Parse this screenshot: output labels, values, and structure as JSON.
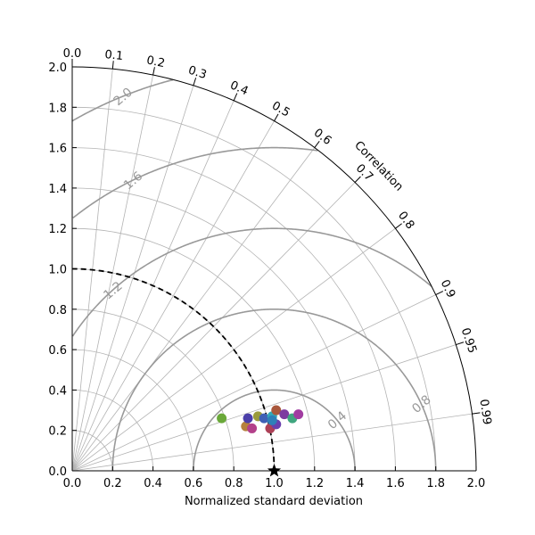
{
  "chart_data": {
    "type": "scatter",
    "chart_kind": "taylor-diagram",
    "xlabel": "Normalized standard deviation",
    "ylabel": "",
    "corr_label": "Correlation",
    "xlim": [
      0,
      2
    ],
    "ylim": [
      0,
      2
    ],
    "x_ticks": [
      "0.0",
      "0.2",
      "0.4",
      "0.6",
      "0.8",
      "1.0",
      "1.2",
      "1.4",
      "1.6",
      "1.8",
      "2.0"
    ],
    "y_ticks": [
      "0.0",
      "0.2",
      "0.4",
      "0.6",
      "0.8",
      "1.0",
      "1.2",
      "1.4",
      "1.6",
      "1.8",
      "2.0"
    ],
    "corr_ticks": [
      "0.0",
      "0.1",
      "0.2",
      "0.3",
      "0.4",
      "0.5",
      "0.6",
      "0.7",
      "0.8",
      "0.9",
      "0.95",
      "0.99"
    ],
    "rms_contours": [
      0.4,
      0.8,
      1.2,
      1.6,
      2.0
    ],
    "rms_labels": [
      "0.4",
      "0.8",
      "1.2",
      "1.6",
      "2.0"
    ],
    "reference": {
      "std": 1.0,
      "corr": 1.0,
      "marker": "star"
    },
    "reference_circle_std": 1.0,
    "grid": true,
    "points": [
      {
        "x": 0.74,
        "y": 0.26,
        "color": "#6aa839"
      },
      {
        "x": 0.86,
        "y": 0.22,
        "color": "#b6813d"
      },
      {
        "x": 0.87,
        "y": 0.26,
        "color": "#4b3fa9"
      },
      {
        "x": 0.89,
        "y": 0.21,
        "color": "#b3408a"
      },
      {
        "x": 0.92,
        "y": 0.27,
        "color": "#9a9a3a"
      },
      {
        "x": 0.95,
        "y": 0.26,
        "color": "#3e5fb5"
      },
      {
        "x": 0.98,
        "y": 0.21,
        "color": "#ad4057"
      },
      {
        "x": 0.99,
        "y": 0.27,
        "color": "#33a8b8"
      },
      {
        "x": 1.01,
        "y": 0.3,
        "color": "#a9583c"
      },
      {
        "x": 1.01,
        "y": 0.23,
        "color": "#6a3fae"
      },
      {
        "x": 1.05,
        "y": 0.28,
        "color": "#7d3ba0"
      },
      {
        "x": 1.09,
        "y": 0.26,
        "color": "#3fa67f"
      },
      {
        "x": 1.12,
        "y": 0.28,
        "color": "#a13ca1"
      },
      {
        "x": 0.99,
        "y": 0.25,
        "color": "#2e7fb8"
      }
    ]
  }
}
